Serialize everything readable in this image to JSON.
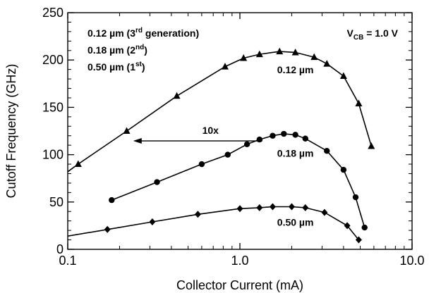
{
  "chart_data": {
    "type": "line",
    "xlabel": "Collector Current (mA)",
    "ylabel": "Cutoff Frequency (GHz)",
    "x_scale": "log",
    "xlim": [
      0.1,
      10.0
    ],
    "ylim": [
      0,
      250
    ],
    "x_ticks": [
      {
        "value": 0.1,
        "label": "0.1"
      },
      {
        "value": 1.0,
        "label": "1.0"
      },
      {
        "value": 10.0,
        "label": "10.0"
      }
    ],
    "y_ticks": [
      {
        "value": 0,
        "label": "0"
      },
      {
        "value": 50,
        "label": "50"
      },
      {
        "value": 100,
        "label": "100"
      },
      {
        "value": 150,
        "label": "150"
      },
      {
        "value": 200,
        "label": "200"
      },
      {
        "value": 250,
        "label": "250"
      }
    ],
    "grid": false,
    "series": [
      {
        "name": "0.12 µm",
        "marker": "triangle",
        "points": [
          {
            "x": 0.1,
            "y": 82
          },
          {
            "x": 0.115,
            "y": 90
          },
          {
            "x": 0.22,
            "y": 125
          },
          {
            "x": 0.43,
            "y": 162
          },
          {
            "x": 0.82,
            "y": 193
          },
          {
            "x": 1.05,
            "y": 202
          },
          {
            "x": 1.3,
            "y": 206
          },
          {
            "x": 1.7,
            "y": 209
          },
          {
            "x": 2.1,
            "y": 208
          },
          {
            "x": 2.7,
            "y": 203
          },
          {
            "x": 3.2,
            "y": 196
          },
          {
            "x": 4.0,
            "y": 183
          },
          {
            "x": 4.9,
            "y": 154
          },
          {
            "x": 5.8,
            "y": 109
          }
        ]
      },
      {
        "name": "0.18 µm",
        "marker": "circle",
        "points": [
          {
            "x": 0.18,
            "y": 52
          },
          {
            "x": 0.33,
            "y": 71
          },
          {
            "x": 0.6,
            "y": 90
          },
          {
            "x": 0.85,
            "y": 100
          },
          {
            "x": 1.1,
            "y": 111
          },
          {
            "x": 1.3,
            "y": 116
          },
          {
            "x": 1.55,
            "y": 120
          },
          {
            "x": 1.8,
            "y": 122
          },
          {
            "x": 2.1,
            "y": 121
          },
          {
            "x": 2.4,
            "y": 117
          },
          {
            "x": 3.2,
            "y": 104
          },
          {
            "x": 4.0,
            "y": 84
          },
          {
            "x": 4.7,
            "y": 55
          },
          {
            "x": 5.3,
            "y": 23
          }
        ]
      },
      {
        "name": "0.50 µm",
        "marker": "diamond",
        "points": [
          {
            "x": 0.1,
            "y": 14
          },
          {
            "x": 0.17,
            "y": 21
          },
          {
            "x": 0.31,
            "y": 29
          },
          {
            "x": 0.57,
            "y": 37
          },
          {
            "x": 1.0,
            "y": 43
          },
          {
            "x": 1.3,
            "y": 44
          },
          {
            "x": 1.55,
            "y": 45
          },
          {
            "x": 2.0,
            "y": 45
          },
          {
            "x": 2.4,
            "y": 44
          },
          {
            "x": 3.1,
            "y": 39
          },
          {
            "x": 4.2,
            "y": 25
          },
          {
            "x": 4.9,
            "y": 10
          }
        ]
      }
    ],
    "series_labels": [
      {
        "text": "0.12 µm",
        "x": 2.1,
        "y": 186
      },
      {
        "text": "0.18 µm",
        "x": 2.1,
        "y": 98
      },
      {
        "text": "0.50 µm",
        "x": 2.1,
        "y": 25
      }
    ],
    "legend": {
      "placement": "top-left",
      "entries": [
        {
          "main": "0.12 µm (3",
          "sup": "rd",
          "tail": " generation)"
        },
        {
          "main": "0.18 µm (2",
          "sup": "nd",
          "tail": ")"
        },
        {
          "main": "0.50 µm (1",
          "sup": "st",
          "tail": ")"
        }
      ]
    },
    "condition": {
      "main": "V",
      "sub": "CB",
      "tail": " = 1.0 V",
      "placement": "top-right"
    },
    "arrow_annotation": {
      "text": "10x",
      "from": {
        "x": 1.35,
        "y": 122
      },
      "to": {
        "x": 0.24,
        "y": 122
      }
    }
  }
}
